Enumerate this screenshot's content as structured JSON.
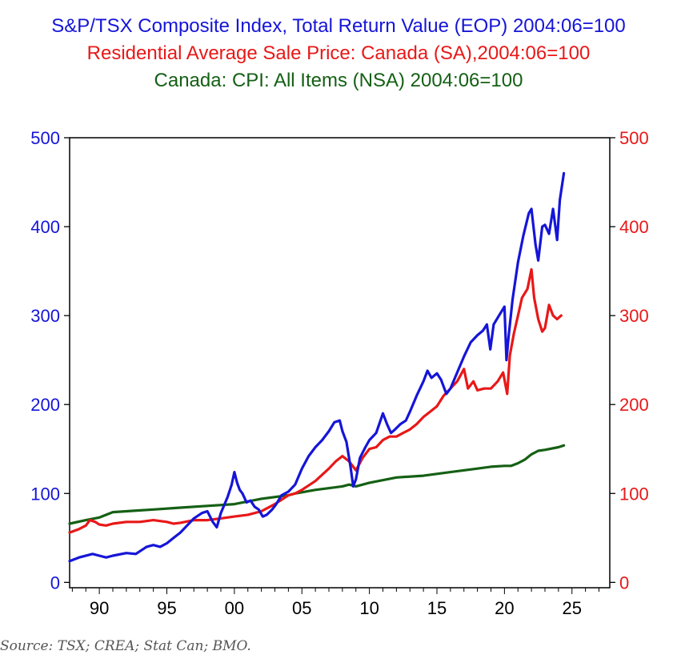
{
  "chart_data": {
    "type": "line",
    "titles": [
      {
        "text": "S&P/TSX Composite Index, Total Return Value (EOP) 2004:06=100",
        "color": "#1515d8"
      },
      {
        "text": "Residential Average Sale Price: Canada (SA),2004:06=100",
        "color": "#e81818"
      },
      {
        "text": "Canada: CPI: All Items (NSA) 2004:06=100",
        "color": "#156015"
      }
    ],
    "x_range": [
      1987.8,
      2027.8
    ],
    "x_ticks": [
      {
        "value": 1990,
        "label": "90"
      },
      {
        "value": 1995,
        "label": "95"
      },
      {
        "value": 2000,
        "label": "00"
      },
      {
        "value": 2005,
        "label": "05"
      },
      {
        "value": 2010,
        "label": "10"
      },
      {
        "value": 2015,
        "label": "15"
      },
      {
        "value": 2020,
        "label": "20"
      },
      {
        "value": 2025,
        "label": "25"
      }
    ],
    "y_left": {
      "range": [
        -6,
        500
      ],
      "ticks": [
        0,
        100,
        200,
        300,
        400,
        500
      ],
      "color": "#1515d8"
    },
    "y_right": {
      "range": [
        -6,
        500
      ],
      "ticks": [
        0,
        100,
        200,
        300,
        400,
        500
      ],
      "color": "#e81818"
    },
    "grid": false,
    "series": [
      {
        "name": "S&P/TSX Composite Index, Total Return Value",
        "color": "#1515d8",
        "x": [
          1987.8,
          1988.5,
          1989.5,
          1990.0,
          1990.5,
          1991.0,
          1992.0,
          1992.7,
          1993.5,
          1994.0,
          1994.5,
          1995.0,
          1995.5,
          1996.0,
          1996.5,
          1997.0,
          1997.6,
          1998.0,
          1998.4,
          1998.7,
          1999.0,
          1999.5,
          1999.8,
          2000.0,
          2000.2,
          2000.4,
          2000.6,
          2000.9,
          2001.2,
          2001.5,
          2001.8,
          2002.1,
          2002.4,
          2002.8,
          2003.1,
          2003.5,
          2004.0,
          2004.5,
          2005.0,
          2005.5,
          2006.0,
          2006.5,
          2007.0,
          2007.4,
          2007.8,
          2008.0,
          2008.3,
          2008.6,
          2008.8,
          2009.0,
          2009.3,
          2009.7,
          2010.0,
          2010.5,
          2011.0,
          2011.3,
          2011.6,
          2011.9,
          2012.3,
          2012.7,
          2013.0,
          2013.5,
          2014.0,
          2014.3,
          2014.6,
          2015.0,
          2015.3,
          2015.7,
          2016.0,
          2016.5,
          2017.0,
          2017.5,
          2018.0,
          2018.4,
          2018.7,
          2018.95,
          2019.2,
          2019.6,
          2020.0,
          2020.15,
          2020.3,
          2020.6,
          2021.0,
          2021.4,
          2021.8,
          2022.0,
          2022.3,
          2022.5,
          2022.8,
          2023.0,
          2023.3,
          2023.6,
          2023.9,
          2024.1,
          2024.4
        ],
        "values": [
          24,
          28,
          32,
          30,
          28,
          30,
          33,
          32,
          40,
          42,
          40,
          44,
          50,
          56,
          64,
          72,
          78,
          80,
          68,
          62,
          78,
          96,
          110,
          124,
          112,
          104,
          100,
          90,
          92,
          85,
          82,
          74,
          76,
          82,
          88,
          98,
          102,
          110,
          128,
          142,
          152,
          160,
          170,
          180,
          182,
          170,
          158,
          130,
          108,
          116,
          140,
          152,
          160,
          168,
          190,
          178,
          168,
          172,
          178,
          182,
          192,
          210,
          226,
          238,
          230,
          235,
          228,
          212,
          218,
          236,
          254,
          270,
          278,
          283,
          290,
          262,
          290,
          300,
          310,
          250,
          275,
          318,
          360,
          390,
          415,
          420,
          380,
          362,
          400,
          402,
          392,
          420,
          385,
          430,
          460
        ]
      },
      {
        "name": "Residential Average Sale Price: Canada (SA)",
        "color": "#e81818",
        "x": [
          1987.8,
          1988.5,
          1989.0,
          1989.3,
          1989.7,
          1990.0,
          1990.5,
          1991.0,
          1992.0,
          1993.0,
          1994.0,
          1995.0,
          1995.5,
          1996.0,
          1997.0,
          1998.0,
          1999.0,
          2000.0,
          2001.0,
          2002.0,
          2003.0,
          2004.0,
          2004.5,
          2005.0,
          2006.0,
          2007.0,
          2007.5,
          2008.0,
          2008.5,
          2008.8,
          2009.0,
          2009.5,
          2010.0,
          2010.5,
          2011.0,
          2011.5,
          2012.0,
          2012.5,
          2013.0,
          2013.5,
          2014.0,
          2014.5,
          2015.0,
          2015.5,
          2016.0,
          2016.5,
          2017.0,
          2017.3,
          2017.7,
          2018.0,
          2018.5,
          2019.0,
          2019.5,
          2019.9,
          2020.2,
          2020.4,
          2020.7,
          2021.0,
          2021.3,
          2021.7,
          2022.0,
          2022.2,
          2022.5,
          2022.8,
          2023.0,
          2023.3,
          2023.6,
          2023.9,
          2024.2
        ],
        "values": [
          56,
          60,
          64,
          70,
          68,
          65,
          64,
          66,
          68,
          68,
          70,
          68,
          66,
          67,
          70,
          70,
          72,
          74,
          76,
          80,
          88,
          98,
          100,
          104,
          114,
          128,
          136,
          142,
          136,
          130,
          126,
          140,
          150,
          152,
          160,
          164,
          164,
          168,
          172,
          178,
          186,
          192,
          198,
          210,
          218,
          226,
          240,
          218,
          226,
          216,
          218,
          218,
          226,
          236,
          212,
          255,
          280,
          300,
          320,
          330,
          352,
          320,
          296,
          282,
          286,
          312,
          300,
          296,
          300
        ]
      },
      {
        "name": "Canada: CPI: All Items (NSA)",
        "color": "#156015",
        "x": [
          1987.8,
          1989.0,
          1990.0,
          1991.0,
          1992.0,
          1994.0,
          1996.0,
          1998.0,
          2000.0,
          2002.0,
          2004.0,
          2004.5,
          2006.0,
          2008.0,
          2008.5,
          2009.0,
          2010.0,
          2012.0,
          2014.0,
          2016.0,
          2018.0,
          2019.0,
          2020.0,
          2020.5,
          2021.0,
          2021.5,
          2022.0,
          2022.5,
          2023.0,
          2024.0,
          2024.4
        ],
        "values": [
          66,
          70,
          73,
          79,
          80,
          82,
          84,
          86,
          88,
          94,
          98,
          100,
          104,
          108,
          110,
          108,
          112,
          118,
          120,
          124,
          128,
          130,
          131,
          131,
          134,
          138,
          144,
          148,
          149,
          152,
          154
        ]
      }
    ]
  },
  "source": "Source: TSX; CREA; Stat Can; BMO."
}
